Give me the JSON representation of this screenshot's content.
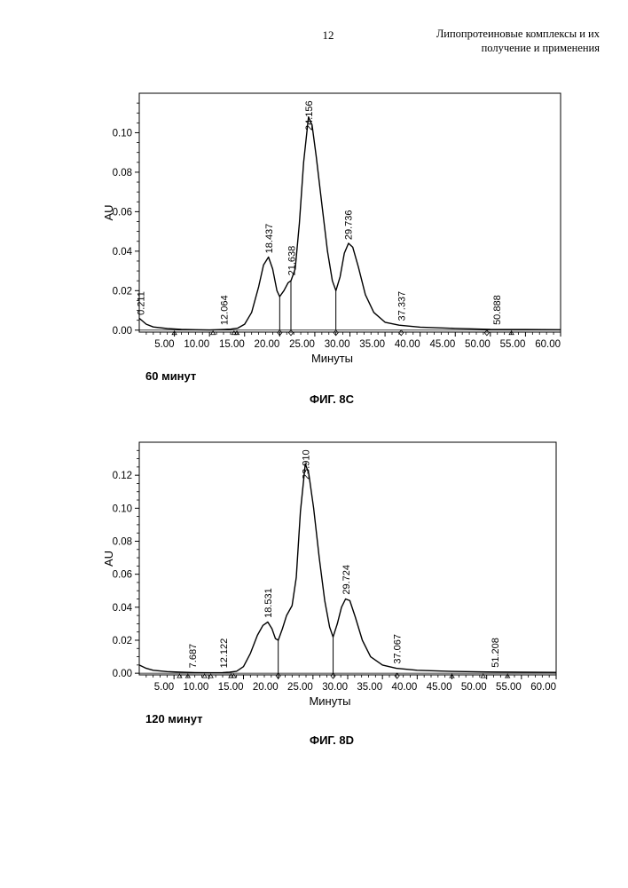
{
  "header": {
    "page_number": "12",
    "title_line1": "Липопротеиновые комплексы и их",
    "title_line2": "получение и применения"
  },
  "figures": [
    {
      "caption": "ФИГ. 8C",
      "panel_label": "60 минут",
      "chart_data": {
        "type": "line",
        "xlabel": "Минуты",
        "ylabel": "AU",
        "xlim": [
          0,
          60
        ],
        "ylim": [
          -0.001,
          0.12
        ],
        "x_ticks": [
          "5.00",
          "10.00",
          "15.00",
          "20.00",
          "25.00",
          "30.00",
          "35.00",
          "40.00",
          "45.00",
          "50.00",
          "55.00",
          "60.00"
        ],
        "y_ticks": [
          "0.00",
          "0.02",
          "0.04",
          "0.06",
          "0.08",
          "0.10"
        ],
        "y_tick_values": [
          0,
          0.02,
          0.04,
          0.06,
          0.08,
          0.1
        ],
        "peak_labels": [
          {
            "x": 0.211,
            "label": "0.211"
          },
          {
            "x": 12.064,
            "label": "12.064"
          },
          {
            "x": 18.437,
            "label": "18.437"
          },
          {
            "x": 21.638,
            "label": "21.638"
          },
          {
            "x": 24.156,
            "label": "24.156"
          },
          {
            "x": 29.736,
            "label": "29.736"
          },
          {
            "x": 37.337,
            "label": "37.337"
          },
          {
            "x": 50.888,
            "label": "50.888"
          }
        ],
        "drop_lines": [
          20.0,
          21.6,
          28.0
        ],
        "integration_markers": [
          {
            "x": 5.0,
            "shape": "triangle"
          },
          {
            "x": 10.5,
            "shape": "triangle"
          },
          {
            "x": 13.5,
            "shape": "triangle"
          },
          {
            "x": 13.9,
            "shape": "triangle"
          },
          {
            "x": 20.0,
            "shape": "diamond"
          },
          {
            "x": 21.6,
            "shape": "diamond"
          },
          {
            "x": 28.0,
            "shape": "diamond"
          },
          {
            "x": 37.3,
            "shape": "diamond"
          },
          {
            "x": 49.5,
            "shape": "diamond"
          },
          {
            "x": 53.0,
            "shape": "triangle"
          }
        ],
        "series": [
          {
            "values": [
              [
                0,
                0.006
              ],
              [
                1,
                0.003
              ],
              [
                2,
                0.0016
              ],
              [
                4,
                0.0008
              ],
              [
                6,
                0.0004
              ],
              [
                8,
                0.0002
              ],
              [
                10,
                0.0001
              ],
              [
                12,
                0.0003
              ],
              [
                13,
                0.0005
              ],
              [
                14,
                0.001
              ],
              [
                15,
                0.003
              ],
              [
                16,
                0.009
              ],
              [
                17,
                0.022
              ],
              [
                17.7,
                0.033
              ],
              [
                18.4,
                0.037
              ],
              [
                19,
                0.031
              ],
              [
                19.6,
                0.02
              ],
              [
                20,
                0.017
              ],
              [
                20.6,
                0.02
              ],
              [
                21.2,
                0.024
              ],
              [
                21.6,
                0.025
              ],
              [
                22.2,
                0.031
              ],
              [
                22.8,
                0.054
              ],
              [
                23.4,
                0.085
              ],
              [
                24.1,
                0.108
              ],
              [
                24.6,
                0.104
              ],
              [
                25.2,
                0.088
              ],
              [
                26,
                0.064
              ],
              [
                26.8,
                0.04
              ],
              [
                27.5,
                0.025
              ],
              [
                28,
                0.02
              ],
              [
                28.6,
                0.027
              ],
              [
                29.2,
                0.039
              ],
              [
                29.8,
                0.044
              ],
              [
                30.4,
                0.042
              ],
              [
                31.2,
                0.032
              ],
              [
                32.2,
                0.018
              ],
              [
                33.4,
                0.009
              ],
              [
                35,
                0.004
              ],
              [
                37,
                0.0025
              ],
              [
                40,
                0.0015
              ],
              [
                45,
                0.0009
              ],
              [
                50,
                0.0004
              ],
              [
                55,
                0.0003
              ],
              [
                60,
                0.0002
              ]
            ]
          }
        ]
      }
    },
    {
      "caption": "ФИГ. 8D",
      "panel_label": "120 минут",
      "chart_data": {
        "type": "line",
        "xlabel": "Минуты",
        "ylabel": "AU",
        "xlim": [
          0,
          60
        ],
        "ylim": [
          -0.001,
          0.14
        ],
        "x_ticks": [
          "5.00",
          "10.00",
          "15.00",
          "20.00",
          "25.00",
          "30.00",
          "35.00",
          "40.00",
          "45.00",
          "50.00",
          "55.00",
          "60.00"
        ],
        "y_ticks": [
          "0.00",
          "0.02",
          "0.04",
          "0.06",
          "0.08",
          "0.10",
          "0.12"
        ],
        "y_tick_values": [
          0,
          0.02,
          0.04,
          0.06,
          0.08,
          0.1,
          0.12
        ],
        "peak_labels": [
          {
            "x": 7.687,
            "label": "7.687"
          },
          {
            "x": 12.122,
            "label": "12.122"
          },
          {
            "x": 18.531,
            "label": "18.531"
          },
          {
            "x": 23.91,
            "label": "23.910"
          },
          {
            "x": 29.724,
            "label": "29.724"
          },
          {
            "x": 37.067,
            "label": "37.067"
          },
          {
            "x": 51.208,
            "label": "51.208"
          }
        ],
        "drop_lines": [
          20.0,
          27.9
        ],
        "integration_markers": [
          {
            "x": 5.8,
            "shape": "triangle"
          },
          {
            "x": 7.0,
            "shape": "triangle"
          },
          {
            "x": 9.4,
            "shape": "triangle"
          },
          {
            "x": 10.3,
            "shape": "triangle"
          },
          {
            "x": 13.2,
            "shape": "triangle"
          },
          {
            "x": 13.6,
            "shape": "triangle"
          },
          {
            "x": 20.0,
            "shape": "diamond"
          },
          {
            "x": 27.9,
            "shape": "diamond"
          },
          {
            "x": 37.1,
            "shape": "diamond"
          },
          {
            "x": 45.0,
            "shape": "triangle"
          },
          {
            "x": 49.5,
            "shape": "triangle"
          },
          {
            "x": 53.0,
            "shape": "triangle"
          }
        ],
        "series": [
          {
            "values": [
              [
                0,
                0.005
              ],
              [
                1,
                0.003
              ],
              [
                2,
                0.0018
              ],
              [
                4,
                0.001
              ],
              [
                6,
                0.0006
              ],
              [
                8,
                0.0004
              ],
              [
                10,
                0.0003
              ],
              [
                12,
                0.0004
              ],
              [
                13,
                0.0006
              ],
              [
                14,
                0.0012
              ],
              [
                15,
                0.004
              ],
              [
                16,
                0.012
              ],
              [
                17,
                0.023
              ],
              [
                17.8,
                0.029
              ],
              [
                18.5,
                0.031
              ],
              [
                19.1,
                0.027
              ],
              [
                19.6,
                0.021
              ],
              [
                20,
                0.02
              ],
              [
                20.6,
                0.027
              ],
              [
                21.2,
                0.035
              ],
              [
                22,
                0.041
              ],
              [
                22.6,
                0.058
              ],
              [
                23.2,
                0.098
              ],
              [
                23.9,
                0.127
              ],
              [
                24.4,
                0.121
              ],
              [
                25.1,
                0.1
              ],
              [
                25.9,
                0.07
              ],
              [
                26.7,
                0.044
              ],
              [
                27.4,
                0.028
              ],
              [
                27.9,
                0.022
              ],
              [
                28.5,
                0.03
              ],
              [
                29.1,
                0.04
              ],
              [
                29.7,
                0.045
              ],
              [
                30.3,
                0.044
              ],
              [
                31.1,
                0.034
              ],
              [
                32.1,
                0.02
              ],
              [
                33.3,
                0.01
              ],
              [
                35,
                0.005
              ],
              [
                37,
                0.003
              ],
              [
                40,
                0.0018
              ],
              [
                45,
                0.0011
              ],
              [
                50,
                0.0008
              ],
              [
                55,
                0.0006
              ],
              [
                60,
                0.0005
              ]
            ]
          }
        ]
      }
    }
  ]
}
